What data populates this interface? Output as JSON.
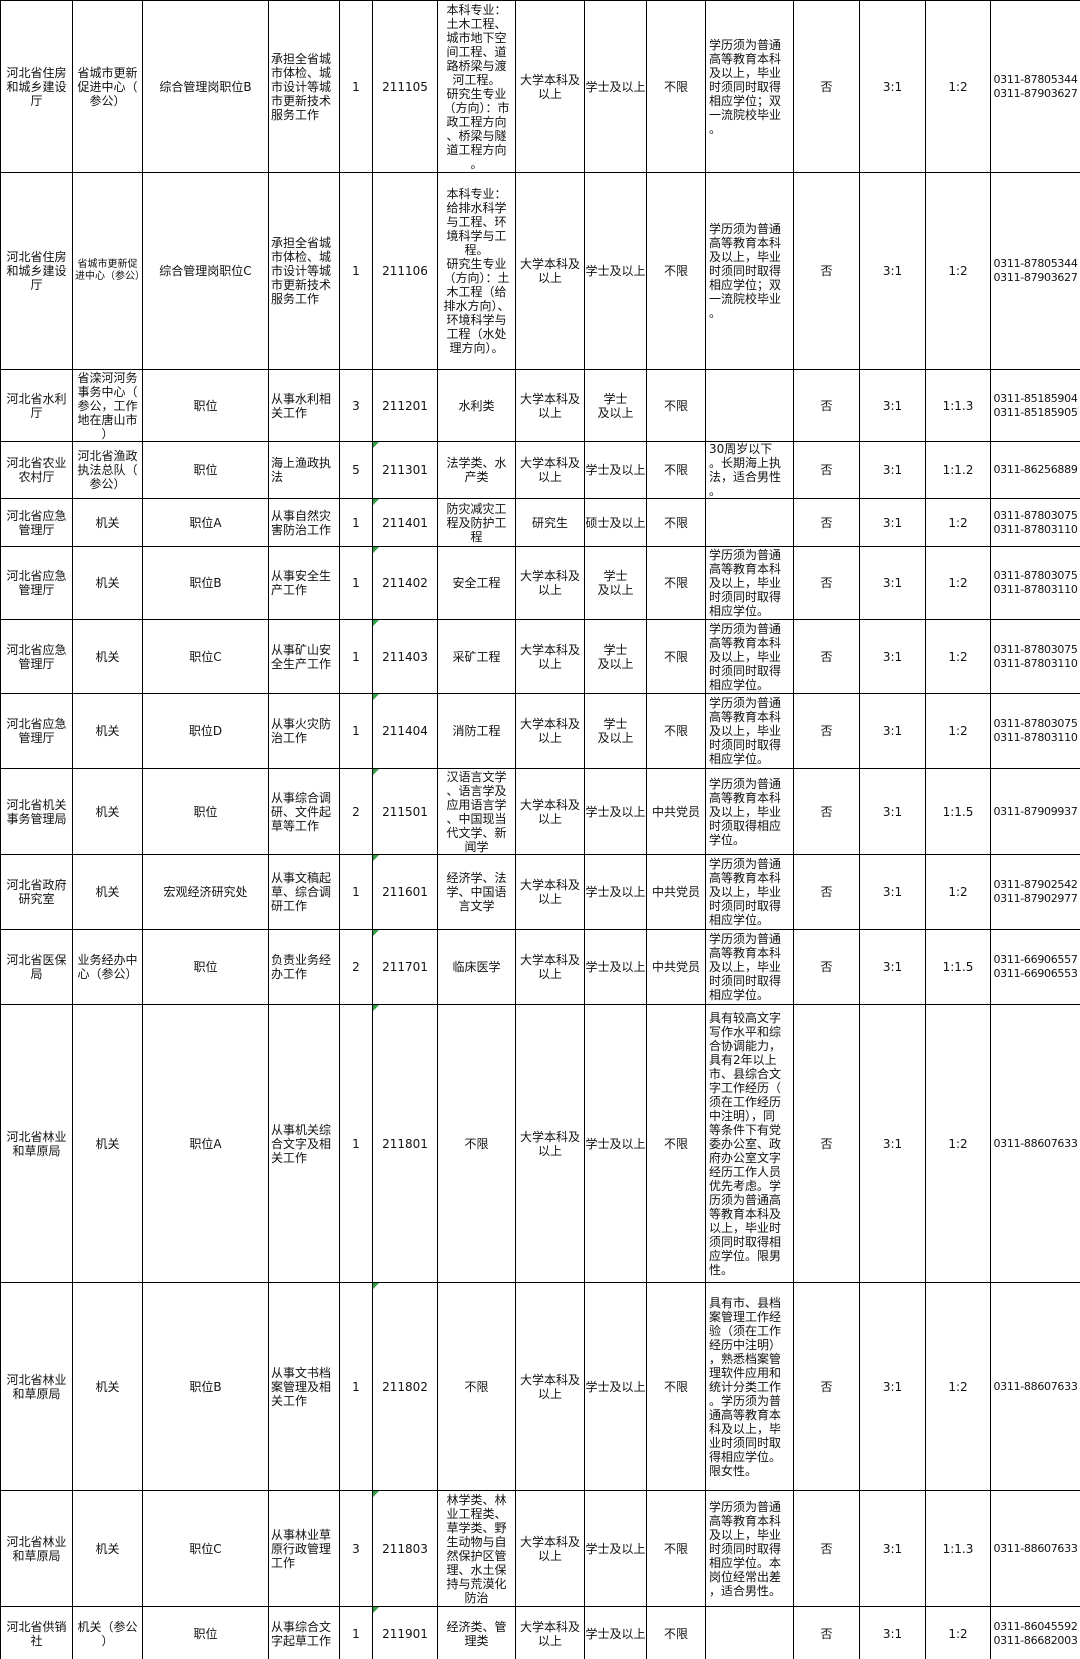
{
  "colors": {
    "border": "#000000",
    "error_marker": "#2f9e44",
    "text": "#111111",
    "background": "#ffffff"
  },
  "table": {
    "description": "cropped spreadsheet region of a Hebei province civil-service job position table; no header row visible",
    "rows": [
      [
        "河北省住房和城乡建设厅",
        "省城市更新促进中心（参公）",
        "综合管理岗职位B",
        "承担全省城市体检、城市设计等城市更新技术服务工作",
        "1",
        "211105",
        "本科专业：土木工程、城市地下空间工程、道路桥梁与渡河工程。\n研究生专业（方向）：市政工程方向、桥梁与隧道工程方向。",
        "大学本科及以上",
        "学士及以上",
        "不限",
        "学历须为普通高等教育本科及以上，毕业时须同时取得相应学位；双一流院校毕业。",
        "否",
        "3:1",
        "1:2",
        "0311-87805344\n0311-87903627"
      ],
      [
        "河北省住房和城乡建设厅",
        "省城市更新促进中心（参公）",
        "综合管理岗职位C",
        "承担全省城市体检、城市设计等城市更新技术服务工作",
        "1",
        "211106",
        "本科专业：给排水科学与工程、环境科学与工程。\n研究生专业（方向）：土木工程（给排水方向）、环境科学与工程（水处理方向）。",
        "大学本科及以上",
        "学士及以上",
        "不限",
        "学历须为普通高等教育本科及以上，毕业时须同时取得相应学位；双一流院校毕业。",
        "否",
        "3:1",
        "1:2",
        "0311-87805344\n0311-87903627"
      ],
      [
        "河北省水利厅",
        "省滦河河务事务中心（参公，工作地在唐山市）",
        "职位",
        "从事水利相关工作",
        "3",
        "211201",
        "水利类",
        "大学本科及以上",
        "学士\n及以上",
        "不限",
        "",
        "否",
        "3:1",
        "1:1.3",
        "0311-85185904\n0311-85185905"
      ],
      [
        "河北省农业农村厅",
        "河北省渔政执法总队（参公）",
        "职位",
        "海上渔政执法",
        "5",
        "211301",
        "法学类、水产类",
        "大学本科及以上",
        "学士及以上",
        "不限",
        "30周岁以下。长期海上执法，适合男性。",
        "否",
        "3:1",
        "1:1.2",
        "0311-86256889"
      ],
      [
        "河北省应急管理厅",
        "机关",
        "职位A",
        "从事自然灾害防治工作",
        "1",
        "211401",
        "防灾减灾工程及防护工程",
        "研究生",
        "硕士及以上",
        "不限",
        "",
        "否",
        "3:1",
        "1:2",
        "0311-87803075\n0311-87803110"
      ],
      [
        "河北省应急管理厅",
        "机关",
        "职位B",
        "从事安全生产工作",
        "1",
        "211402",
        "安全工程",
        "大学本科及以上",
        "学士\n及以上",
        "不限",
        "学历须为普通高等教育本科及以上，毕业时须同时取得相应学位。",
        "否",
        "3:1",
        "1:2",
        "0311-87803075\n0311-87803110"
      ],
      [
        "河北省应急管理厅",
        "机关",
        "职位C",
        "从事矿山安全生产工作",
        "1",
        "211403",
        "采矿工程",
        "大学本科及以上",
        "学士\n及以上",
        "不限",
        "学历须为普通高等教育本科及以上，毕业时须同时取得相应学位。",
        "否",
        "3:1",
        "1:2",
        "0311-87803075\n0311-87803110"
      ],
      [
        "河北省应急管理厅",
        "机关",
        "职位D",
        "从事火灾防治工作",
        "1",
        "211404",
        "消防工程",
        "大学本科及以上",
        "学士\n及以上",
        "不限",
        "学历须为普通高等教育本科及以上，毕业时须同时取得相应学位。",
        "否",
        "3:1",
        "1:2",
        "0311-87803075\n0311-87803110"
      ],
      [
        "河北省机关事务管理局",
        "机关",
        "职位",
        "从事综合调研、文件起草等工作",
        "2",
        "211501",
        "汉语言文学、语言学及应用语言学、中国现当代文学、新闻学",
        "大学本科及以上",
        "学士及以上",
        "中共党员",
        "学历须为普通高等教育本科及以上，毕业时须取得相应学位。",
        "否",
        "3:1",
        "1:1.5",
        "0311-87909937"
      ],
      [
        "河北省政府研究室",
        "机关",
        "宏观经济研究处",
        "从事文稿起草、综合调研工作",
        "1",
        "211601",
        "经济学、法学、中国语言文学",
        "大学本科及以上",
        "学士及以上",
        "中共党员",
        "学历须为普通高等教育本科及以上，毕业时须同时取得相应学位。",
        "否",
        "3:1",
        "1:2",
        "0311-87902542\n0311-87902977"
      ],
      [
        "河北省医保局",
        "业务经办中心（参公）",
        "职位",
        "负责业务经办工作",
        "2",
        "211701",
        "临床医学",
        "大学本科及以上",
        "学士及以上",
        "中共党员",
        "学历须为普通高等教育本科及以上，毕业时须同时取得相应学位。",
        "否",
        "3:1",
        "1:1.5",
        "0311-66906557\n0311-66906553"
      ],
      [
        "河北省林业和草原局",
        "机关",
        "职位A",
        "从事机关综合文字及相关工作",
        "1",
        "211801",
        "不限",
        "大学本科及以上",
        "学士及以上",
        "不限",
        "具有较高文字写作水平和综合协调能力，具有2年以上市、县综合文字工作经历（须在工作经历中注明），同等条件下有党委办公室、政府办公室文字经历工作人员优先考虑。学历须为普通高等教育本科及以上，毕业时须同时取得相应学位。限男性。",
        "否",
        "3:1",
        "1:2",
        "0311-88607633"
      ],
      [
        "河北省林业和草原局",
        "机关",
        "职位B",
        "从事文书档案管理及相关工作",
        "1",
        "211802",
        "不限",
        "大学本科及以上",
        "学士及以上",
        "不限",
        "具有市、县档案管理工作经验（须在工作经历中注明），熟悉档案管理软件应用和统计分类工作。学历须为普通高等教育本科及以上，毕业时须同时取得相应学位。限女性。",
        "否",
        "3:1",
        "1:2",
        "0311-88607633"
      ],
      [
        "河北省林业和草原局",
        "机关",
        "职位C",
        "从事林业草原行政管理工作",
        "3",
        "211803",
        "林学类、林业工程类、草学类、野生动物与自然保护区管理、水土保持与荒漠化防治",
        "大学本科及以上",
        "学士及以上",
        "不限",
        "学历须为普通高等教育本科及以上，毕业时须同时取得相应学位。本岗位经常出差，适合男性。",
        "否",
        "3:1",
        "1:1.3",
        "0311-88607633"
      ],
      [
        "河北省供销社",
        "机关（参公）",
        "职位",
        "从事综合文字起草工作",
        "1",
        "211901",
        "经济类、管理类",
        "大学本科及以上",
        "学士及以上",
        "不限",
        "",
        "否",
        "3:1",
        "1:2",
        "0311-86045592\n0311-86682003"
      ]
    ]
  }
}
